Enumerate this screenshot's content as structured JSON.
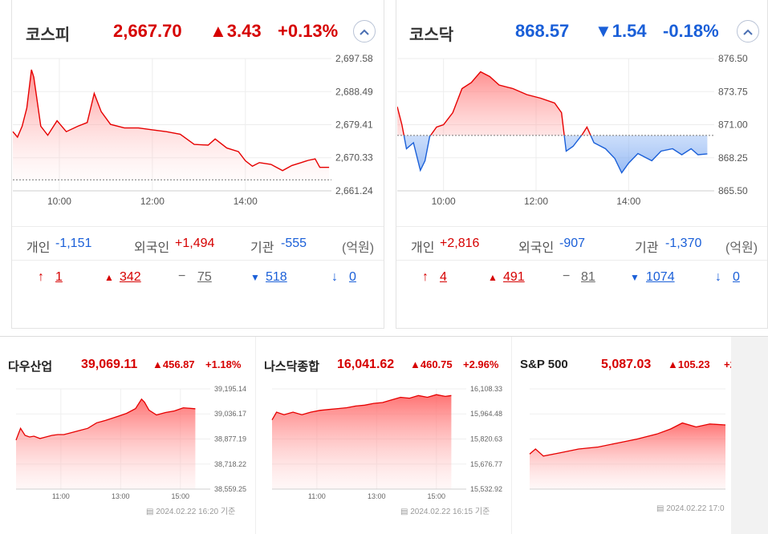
{
  "kospi": {
    "name": "코스피",
    "value": "2,667.70",
    "change": "▲3.43",
    "change_pct": "+0.13%",
    "collapse_icon": "chevron-up-icon",
    "chart_data": {
      "type": "area",
      "x_ticks": [
        "10:00",
        "12:00",
        "14:00"
      ],
      "y_ticks": [
        "2,697.58",
        "2,688.49",
        "2,679.41",
        "2,670.33",
        "2,661.24"
      ],
      "ylim": [
        2661.24,
        2697.58
      ],
      "baseline": 2664.27,
      "color": "#e60000",
      "points": [
        [
          9.0,
          2677.5
        ],
        [
          9.1,
          2676.0
        ],
        [
          9.2,
          2679.0
        ],
        [
          9.3,
          2684.0
        ],
        [
          9.4,
          2694.5
        ],
        [
          9.45,
          2692.5
        ],
        [
          9.5,
          2688.0
        ],
        [
          9.6,
          2679.0
        ],
        [
          9.75,
          2676.5
        ],
        [
          9.95,
          2680.5
        ],
        [
          10.15,
          2677.5
        ],
        [
          10.4,
          2679.0
        ],
        [
          10.6,
          2680.0
        ],
        [
          10.75,
          2688.0
        ],
        [
          10.9,
          2683.0
        ],
        [
          11.1,
          2679.5
        ],
        [
          11.4,
          2678.5
        ],
        [
          11.7,
          2678.5
        ],
        [
          12.0,
          2678.0
        ],
        [
          12.3,
          2677.5
        ],
        [
          12.6,
          2676.8
        ],
        [
          12.9,
          2674.0
        ],
        [
          13.2,
          2673.8
        ],
        [
          13.35,
          2675.5
        ],
        [
          13.6,
          2673.0
        ],
        [
          13.85,
          2672.0
        ],
        [
          14.0,
          2669.5
        ],
        [
          14.15,
          2668.0
        ],
        [
          14.3,
          2669.0
        ],
        [
          14.55,
          2668.5
        ],
        [
          14.8,
          2666.8
        ],
        [
          15.0,
          2668.2
        ],
        [
          15.2,
          2669.0
        ],
        [
          15.35,
          2669.6
        ],
        [
          15.5,
          2670.0
        ],
        [
          15.6,
          2667.7
        ],
        [
          15.8,
          2667.7
        ]
      ]
    },
    "investors": {
      "individual_label": "개인",
      "individual": "-1,151",
      "foreign_label": "외국인",
      "foreign": "+1,494",
      "institution_label": "기관",
      "institution": "-555",
      "unit": "(억원)"
    },
    "breadth": {
      "limit_up": "1",
      "up": "342",
      "flat": "75",
      "down": "518",
      "limit_down": "0"
    }
  },
  "kosdaq": {
    "name": "코스닥",
    "value": "868.57",
    "change": "▼1.54",
    "change_pct": "-0.18%",
    "collapse_icon": "chevron-up-icon",
    "chart_data": {
      "type": "area",
      "x_ticks": [
        "10:00",
        "12:00",
        "14:00"
      ],
      "y_ticks": [
        "876.50",
        "873.75",
        "871.00",
        "868.25",
        "865.50"
      ],
      "ylim": [
        865.5,
        876.5
      ],
      "baseline": 870.11,
      "up_color": "#e60000",
      "down_color": "#1a5fd8",
      "points": [
        [
          9.0,
          872.5
        ],
        [
          9.1,
          871.0
        ],
        [
          9.2,
          869.0
        ],
        [
          9.35,
          869.5
        ],
        [
          9.5,
          867.2
        ],
        [
          9.6,
          868.0
        ],
        [
          9.7,
          870.0
        ],
        [
          9.85,
          870.8
        ],
        [
          10.0,
          871.0
        ],
        [
          10.2,
          872.0
        ],
        [
          10.4,
          874.0
        ],
        [
          10.6,
          874.5
        ],
        [
          10.8,
          875.4
        ],
        [
          11.0,
          875.0
        ],
        [
          11.2,
          874.3
        ],
        [
          11.5,
          874.0
        ],
        [
          11.8,
          873.5
        ],
        [
          12.1,
          873.2
        ],
        [
          12.4,
          872.8
        ],
        [
          12.55,
          872.0
        ],
        [
          12.65,
          868.8
        ],
        [
          12.8,
          869.2
        ],
        [
          13.0,
          870.2
        ],
        [
          13.1,
          870.8
        ],
        [
          13.25,
          869.5
        ],
        [
          13.5,
          869.0
        ],
        [
          13.7,
          868.2
        ],
        [
          13.85,
          867.0
        ],
        [
          14.0,
          867.8
        ],
        [
          14.2,
          868.6
        ],
        [
          14.5,
          868.0
        ],
        [
          14.7,
          868.8
        ],
        [
          14.95,
          869.0
        ],
        [
          15.15,
          868.5
        ],
        [
          15.35,
          869.0
        ],
        [
          15.5,
          868.5
        ],
        [
          15.7,
          868.57
        ]
      ]
    },
    "investors": {
      "individual_label": "개인",
      "individual": "+2,816",
      "foreign_label": "외국인",
      "foreign": "-907",
      "institution_label": "기관",
      "institution": "-1,370",
      "unit": "(억원)"
    },
    "breadth": {
      "limit_up": "4",
      "up": "491",
      "flat": "81",
      "down": "1074",
      "limit_down": "0"
    }
  },
  "dow": {
    "name": "다우산업",
    "value": "39,069.11",
    "change": "▲456.87",
    "change_pct": "+1.18%",
    "timestamp": "2024.02.22 16:20 기준",
    "chart_data": {
      "type": "area",
      "x_ticks": [
        "11:00",
        "13:00",
        "15:00"
      ],
      "y_ticks": [
        "39,195.14",
        "39,036.17",
        "38,877.19",
        "38,718.22",
        "38,559.25"
      ],
      "ylim": [
        38559.25,
        39195.14
      ],
      "points": [
        [
          9.5,
          38870
        ],
        [
          9.65,
          38945
        ],
        [
          9.8,
          38900
        ],
        [
          9.95,
          38890
        ],
        [
          10.1,
          38895
        ],
        [
          10.3,
          38880
        ],
        [
          10.5,
          38890
        ],
        [
          10.7,
          38900
        ],
        [
          10.9,
          38905
        ],
        [
          11.1,
          38905
        ],
        [
          11.3,
          38915
        ],
        [
          11.6,
          38930
        ],
        [
          11.9,
          38945
        ],
        [
          12.2,
          38980
        ],
        [
          12.5,
          38995
        ],
        [
          12.9,
          39020
        ],
        [
          13.2,
          39040
        ],
        [
          13.5,
          39070
        ],
        [
          13.7,
          39130
        ],
        [
          13.8,
          39110
        ],
        [
          13.95,
          39060
        ],
        [
          14.2,
          39030
        ],
        [
          14.5,
          39045
        ],
        [
          14.8,
          39055
        ],
        [
          15.1,
          39075
        ],
        [
          15.5,
          39069
        ]
      ]
    }
  },
  "nasdaq": {
    "name": "나스닥종합",
    "value": "16,041.62",
    "change": "▲460.75",
    "change_pct": "+2.96%",
    "timestamp": "2024.02.22 16:15 기준",
    "chart_data": {
      "type": "area",
      "x_ticks": [
        "11:00",
        "13:00",
        "15:00"
      ],
      "y_ticks": [
        "16,108.33",
        "15,964.48",
        "15,820.63",
        "15,676.77",
        "15,532.92"
      ],
      "ylim": [
        15532.92,
        16108.33
      ],
      "points": [
        [
          9.5,
          15930
        ],
        [
          9.65,
          15975
        ],
        [
          9.9,
          15960
        ],
        [
          10.2,
          15975
        ],
        [
          10.5,
          15960
        ],
        [
          10.8,
          15975
        ],
        [
          11.1,
          15985
        ],
        [
          11.4,
          15990
        ],
        [
          11.7,
          15995
        ],
        [
          12.0,
          16000
        ],
        [
          12.3,
          16010
        ],
        [
          12.6,
          16015
        ],
        [
          12.9,
          16025
        ],
        [
          13.2,
          16030
        ],
        [
          13.5,
          16045
        ],
        [
          13.8,
          16060
        ],
        [
          14.1,
          16055
        ],
        [
          14.4,
          16070
        ],
        [
          14.7,
          16060
        ],
        [
          15.0,
          16075
        ],
        [
          15.3,
          16065
        ],
        [
          15.5,
          16070
        ]
      ]
    }
  },
  "sp500": {
    "name": "S&P 500",
    "value": "5,087.03",
    "change": "▲105.23",
    "change_pct": "+2",
    "timestamp": "2024.02.22 17:0"
  }
}
